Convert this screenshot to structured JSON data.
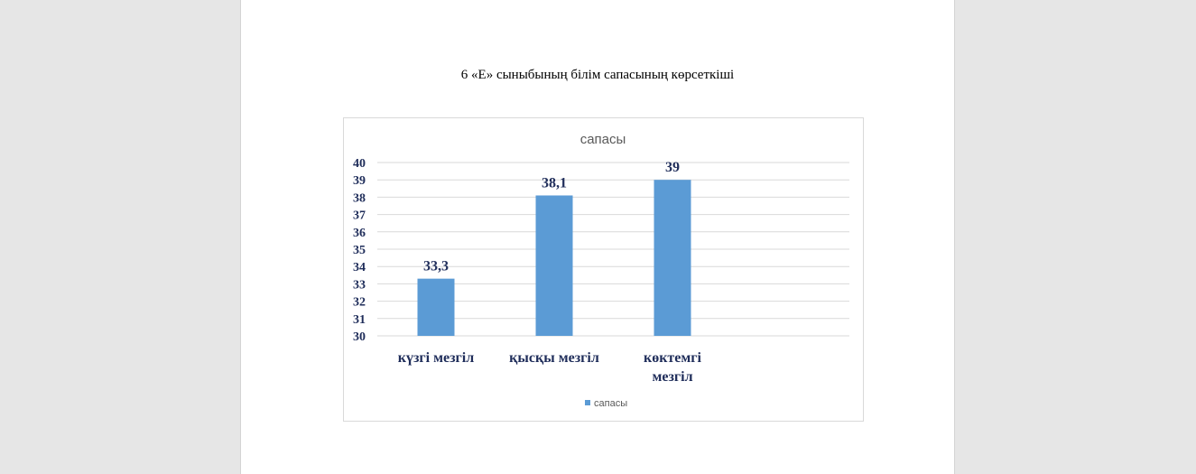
{
  "document": {
    "caption": "6 «Е» сыныбының білім сапасының көрсеткіші"
  },
  "colors": {
    "bar": "#5b9bd5",
    "label": "#1f2d5a",
    "grid": "#d9d9d9"
  },
  "chart_data": {
    "type": "bar",
    "title": "сапасы",
    "categories": [
      [
        "күзгі мезгіл"
      ],
      [
        "қысқы мезгіл"
      ],
      [
        "көктемгі",
        "мезгіл"
      ]
    ],
    "series": [
      {
        "name": "сапасы",
        "values": [
          33.3,
          38.1,
          39
        ]
      }
    ],
    "data_labels": [
      "33,3",
      "38,1",
      "39"
    ],
    "ylim": [
      30,
      40
    ],
    "yticks": [
      30,
      31,
      32,
      33,
      34,
      35,
      36,
      37,
      38,
      39,
      40
    ],
    "grid": true,
    "legend": "bottom"
  }
}
